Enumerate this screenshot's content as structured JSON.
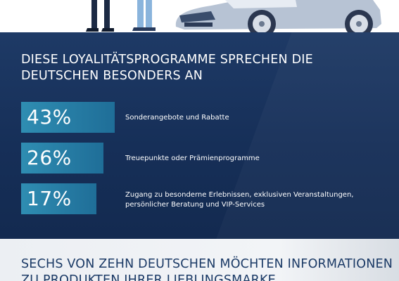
{
  "panel": {
    "heading": "DIESE LOYALITÄTSPROGRAMME SPRECHEN DIE DEUTSCHEN BESONDERS AN",
    "items": [
      {
        "percent": "43%",
        "value": 43,
        "label": "Sonderangebote und Rabatte"
      },
      {
        "percent": "26%",
        "value": 26,
        "label": "Treuepunkte oder Prämienprogramme"
      },
      {
        "percent": "17%",
        "value": 17,
        "label": "Zugang zu besonderne Erlebnissen, exklusiven Veranstaltungen, persönlicher Beratung und VIP-Services"
      }
    ]
  },
  "bottom": {
    "heading": "SECHS VON ZEHN DEUTSCHEN MÖCHTEN INFORMATIONEN ZU PRODUKTEN IHRER LIEBLINGSMARKE"
  },
  "colors": {
    "panel_bg": "#1a3560",
    "bar_start": "#2e7fa3",
    "bar_end": "#1e5f8a",
    "heading_dark": "#1b3a66"
  }
}
